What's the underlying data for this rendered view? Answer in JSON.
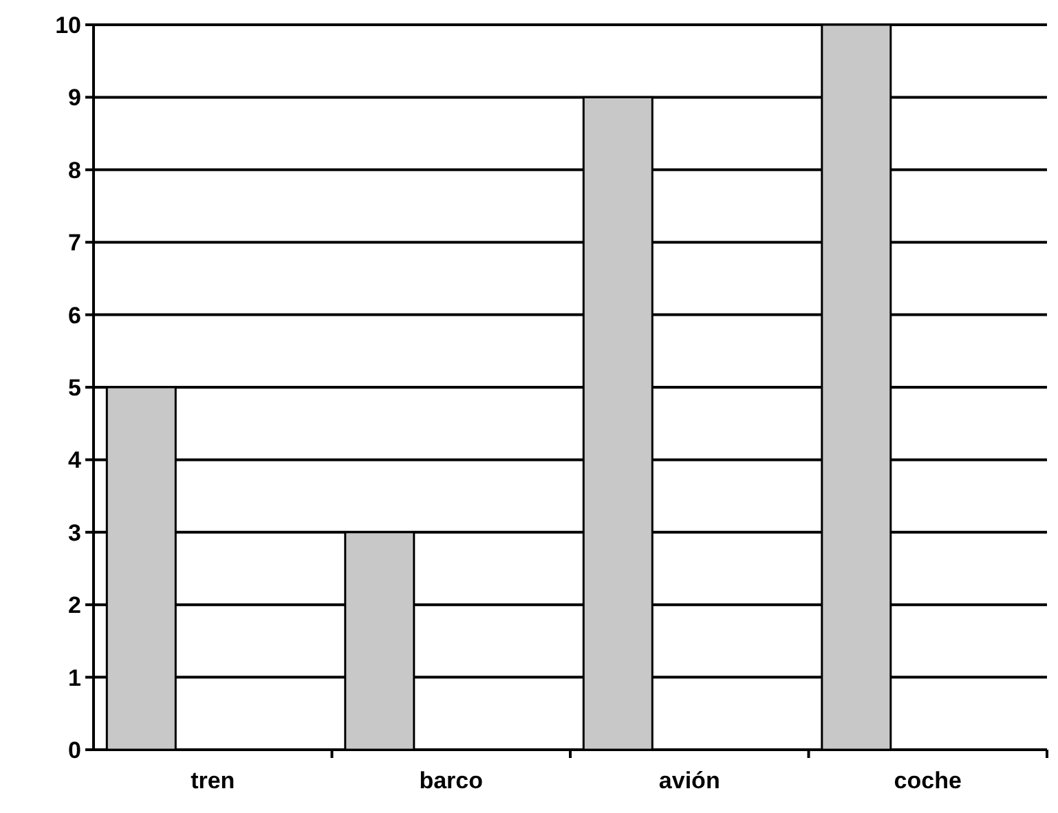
{
  "chart_data": {
    "type": "bar",
    "categories": [
      "tren",
      "barco",
      "avión",
      "coche"
    ],
    "values": [
      5,
      3,
      9,
      10
    ],
    "color": "#c8c8c8",
    "ylim": [
      0,
      10
    ],
    "yticks": [
      0,
      1,
      2,
      3,
      4,
      5,
      6,
      7,
      8,
      9,
      10
    ],
    "grid": "y"
  }
}
